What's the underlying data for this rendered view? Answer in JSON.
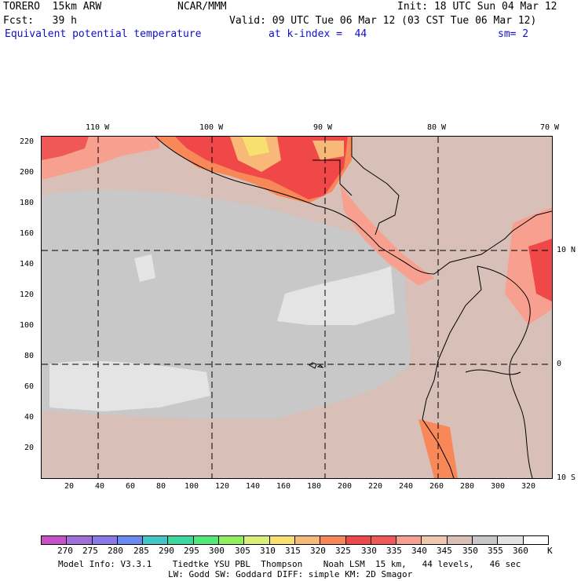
{
  "header": {
    "model": "TORERO  15km ARW",
    "center": "NCAR/MMM",
    "init": "Init: 18 UTC Sun 04 Mar 12",
    "fcst": "Fcst:   39 h",
    "valid": "Valid: 09 UTC Tue 06 Mar 12 (03 CST Tue 06 Mar 12)",
    "field": "Equivalent potential temperature",
    "level": "at k-index =  44",
    "smooth": "sm= 2"
  },
  "map": {
    "top_lon_labels": [
      "110 W",
      "100 W",
      "90 W",
      "80 W",
      "70 W"
    ],
    "right_lat_labels": [
      "10 N",
      "0",
      "10 S"
    ],
    "left_y_labels": [
      "220",
      "200",
      "180",
      "160",
      "140",
      "120",
      "100",
      "80",
      "60",
      "40",
      "20"
    ],
    "bottom_x_labels": [
      "20",
      "40",
      "60",
      "80",
      "100",
      "120",
      "140",
      "160",
      "180",
      "200",
      "220",
      "240",
      "260",
      "280",
      "300",
      "320"
    ]
  },
  "colorbar": {
    "colors": [
      "#c850c8",
      "#a070d8",
      "#8878e8",
      "#6a8cf0",
      "#40c8c8",
      "#38d8a0",
      "#50e878",
      "#90f060",
      "#d8f078",
      "#f8e070",
      "#f8b878",
      "#f88858",
      "#f04848",
      "#f05858",
      "#f8a090",
      "#f0c8b0",
      "#d8c0b8",
      "#c8c8c8",
      "#e4e4e4",
      "#ffffff"
    ],
    "labels": [
      "270",
      "275",
      "280",
      "285",
      "290",
      "295",
      "300",
      "305",
      "310",
      "315",
      "320",
      "325",
      "330",
      "335",
      "340",
      "345",
      "350",
      "355",
      "360",
      "K"
    ]
  },
  "footer": {
    "line1": "Model Info: V3.3.1    Tiedtke YSU PBL  Thompson    Noah LSM  15 km,   44 levels,   46 sec",
    "line2": "LW: Godd SW: Goddard DIFF: simple KM: 2D Smagor"
  }
}
